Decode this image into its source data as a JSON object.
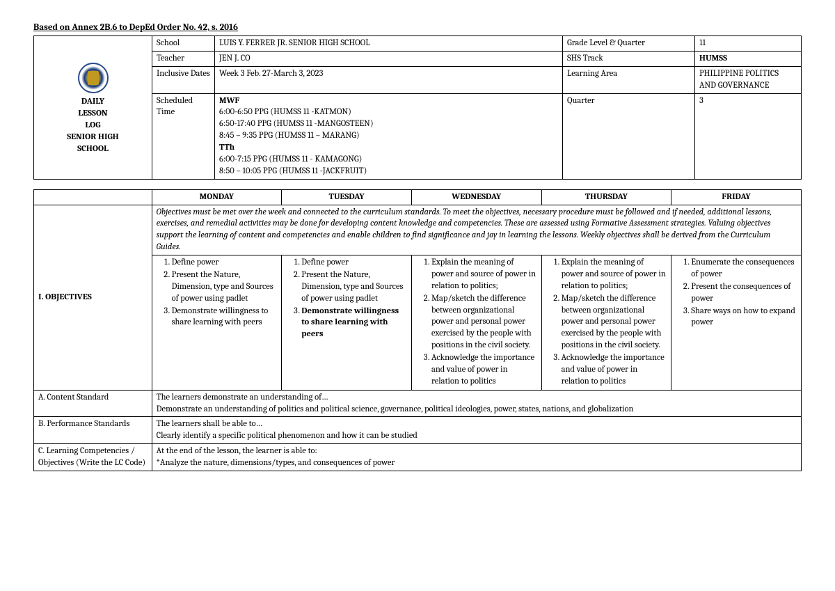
{
  "doc_title": "Based on Annex 2B.6 to DepEd Order No. 42, s. 2016",
  "header": {
    "left_block": "DAILY\nLESSON\nLOG\nSENIOR HIGH\nSCHOOL",
    "rows": {
      "school_label": "School",
      "school_value": "LUIS Y. FERRER JR. SENIOR HIGH SCHOOL",
      "grade_label": "Grade Level & Quarter",
      "grade_value": "11",
      "teacher_label": "Teacher",
      "teacher_value": "JEN J. CO",
      "track_label": "SHS Track",
      "track_value": "HUMSS",
      "dates_label": "Inclusive Dates",
      "dates_value": "Week 3 Feb. 27-March 3, 2023",
      "area_label": "Learning Area",
      "area_value": "PHILIPPINE POLITICS AND GOVERNANCE",
      "time_label": "Scheduled Time",
      "quarter_label": "Quarter",
      "quarter_value": "3"
    },
    "schedule": {
      "mwf_label": "MWF",
      "mwf_lines": [
        "6:00-6:50 PPG (HUMSS 11 -KATMON)",
        "6:50-17:40 PPG (HUMSS 11 -MANGOSTEEN)",
        "8:45 – 9:35 PPG (HUMSS 11 – MARANG)"
      ],
      "tth_label": "TTh",
      "tth_lines": [
        "6:00-7:15 PPG (HUMSS 11  - KAMAGONG)",
        "8:50 – 10:05 PPG (HUMSS 11 -JACKFRUIT)"
      ]
    }
  },
  "days": {
    "mon": "MONDAY",
    "tue": "TUESDAY",
    "wed": "WEDNESDAY",
    "thu": "THURSDAY",
    "fri": "FRIDAY"
  },
  "objectives_note": "Objectives must be met over the week and connected to the curriculum standards. To meet the objectives, necessary procedure must be followed and if needed, additional lessons, exercises, and remedial activities may be done for developing content knowledge and competencies. These are assessed using Formative Assessment strategies. Valuing objectives support the learning of content and competencies and enable children to find significance and joy in learning the lessons. Weekly objectives shall be derived from the Curriculum Guides.",
  "section_labels": {
    "objectives": "I. OBJECTIVES",
    "content_std": "A. Content Standard",
    "perf_std": "B. Performance Standards",
    "learning_comp": "C. Learning Competencies / Objectives (Write the LC Code)"
  },
  "objectives": {
    "mon": [
      "Define power",
      "Present the Nature, Dimension, type and Sources of power using padlet",
      "Demonstrate willingness to share learning with peers"
    ],
    "tue": [
      "Define power",
      "Present the Nature, Dimension, type and Sources of power using padlet",
      "Demonstrate willingness to share learning with peers"
    ],
    "wed": [
      "Explain the meaning of power and source of power in relation to politics;",
      "Map/sketch the difference between organizational power and personal power exercised by the people with positions in the civil society.",
      "Acknowledge the importance  and value of power in relation to politics"
    ],
    "thu": [
      "Explain the meaning of power and source of power in relation to politics;",
      "Map/sketch the difference between organizational power and personal power exercised by the people with positions in the civil society.",
      "Acknowledge the importance  and value of power in relation to politics"
    ],
    "fri": [
      "Enumerate the consequences of power",
      "Present the consequences of power",
      "Share ways on how to expand power"
    ]
  },
  "content_standard": {
    "line1": "The learners demonstrate an understanding of…",
    "line2": "Demonstrate an understanding of politics and political science, governance, political ideologies, power, states, nations, and globalization"
  },
  "performance_standard": {
    "line1": "The learners shall be able to…",
    "line2": "Clearly identify a specific political phenomenon and how it can be studied"
  },
  "learning_competencies": {
    "line1": "At the end of the lesson, the learner is able to:",
    "line2": "*Analyze the nature, dimensions/types, and consequences of power"
  }
}
